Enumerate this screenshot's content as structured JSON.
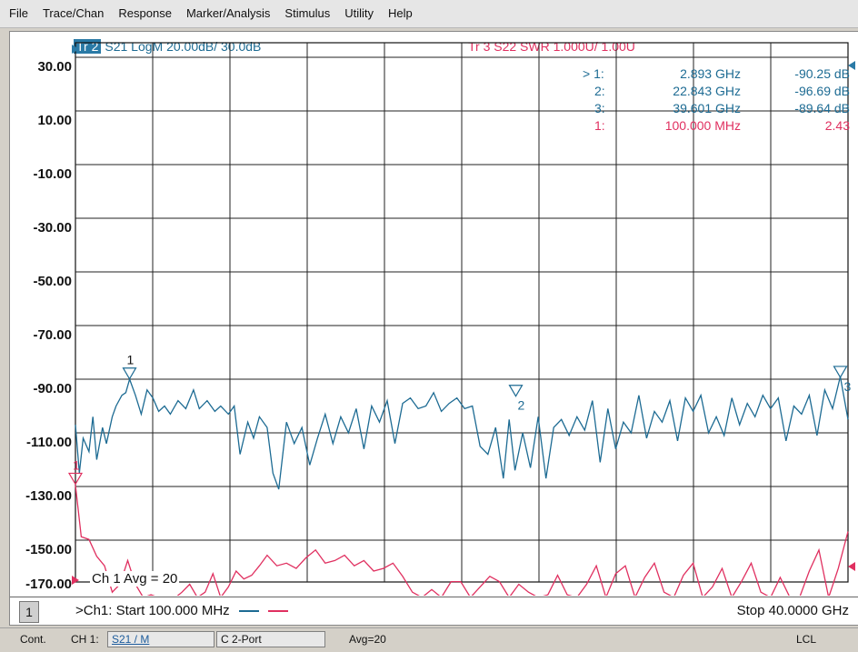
{
  "menu": [
    "File",
    "Trace/Chan",
    "Response",
    "Marker/Analysis",
    "Stimulus",
    "Utility",
    "Help"
  ],
  "trace2": {
    "id": "Tr 2",
    "label": "S21 LogM 20.00dB/ 30.0dB",
    "color": "#1d6b93"
  },
  "trace3": {
    "label": "Tr 3  S22 SWR 1.000U/ 1.00U",
    "color": "#e03060"
  },
  "y_axis": {
    "labels": [
      "30.00",
      "10.00",
      "-10.00",
      "-30.00",
      "-50.00",
      "-70.00",
      "-90.00",
      "-110.00",
      "-130.00",
      "-150.00",
      "-170.00"
    ],
    "ylim": [
      -170,
      30
    ],
    "divisions": 10
  },
  "marker_table": [
    {
      "num": "> 1:",
      "freq": "2.893 GHz",
      "value": "-90.25 dB",
      "color": "#1d6b93"
    },
    {
      "num": "2:",
      "freq": "22.843 GHz",
      "value": "-96.69 dB",
      "color": "#1d6b93"
    },
    {
      "num": "3:",
      "freq": "39.601 GHz",
      "value": "-89.64 dB",
      "color": "#1d6b93"
    },
    {
      "num": "1:",
      "freq": "100.000 MHz",
      "value": "2.43",
      "color": "#e03060"
    }
  ],
  "avg_label": "Ch 1 Avg =   20",
  "channel": {
    "number": "1",
    "start": ">Ch1: Start  100.000 MHz",
    "stop": "Stop  40.0000 GHz"
  },
  "status": {
    "mode": "Cont.",
    "ch": "CH 1:",
    "meas": "S21 / M",
    "port": "C 2-Port",
    "avg": "Avg=20",
    "lcl": "LCL"
  },
  "chart_data": {
    "type": "line",
    "x_range_ghz": [
      0.1,
      40.0
    ],
    "grid": true,
    "series": [
      {
        "trace": "Tr 2",
        "scale": "LogM 20.00 dB/div, ref 30.0 dB",
        "color": "#1d6b93",
        "x": [
          0.1,
          0.3,
          0.5,
          0.8,
          1.0,
          1.2,
          1.5,
          1.7,
          2.0,
          2.2,
          2.5,
          2.7,
          2.9,
          3.2,
          3.5,
          3.8,
          4.1,
          4.4,
          4.7,
          5.0,
          5.4,
          5.8,
          6.2,
          6.5,
          6.9,
          7.3,
          7.6,
          8.0,
          8.3,
          8.6,
          9.0,
          9.3,
          9.6,
          10.0,
          10.3,
          10.6,
          11.0,
          11.4,
          11.8,
          12.2,
          12.6,
          13.0,
          13.4,
          13.8,
          14.2,
          14.6,
          15.0,
          15.4,
          15.8,
          16.2,
          16.6,
          17.0,
          17.4,
          17.8,
          18.2,
          18.6,
          19.0,
          19.4,
          19.8,
          20.2,
          20.6,
          21.0,
          21.4,
          21.8,
          22.2,
          22.5,
          22.8,
          23.2,
          23.6,
          24.0,
          24.4,
          24.8,
          25.2,
          25.6,
          26.0,
          26.4,
          26.8,
          27.2,
          27.6,
          28.0,
          28.4,
          28.8,
          29.2,
          29.6,
          30.0,
          30.4,
          30.8,
          31.2,
          31.6,
          32.0,
          32.4,
          32.8,
          33.2,
          33.6,
          34.0,
          34.4,
          34.8,
          35.2,
          35.6,
          36.0,
          36.4,
          36.8,
          37.2,
          37.6,
          38.0,
          38.4,
          38.8,
          39.2,
          39.6,
          40.0
        ],
        "y": [
          -107,
          -125,
          -112,
          -117,
          -104,
          -120,
          -108,
          -114,
          -104,
          -100,
          -96,
          -95,
          -90,
          -96,
          -103,
          -94,
          -97,
          -102,
          -100,
          -103,
          -98,
          -101,
          -94,
          -101,
          -98,
          -102,
          -100,
          -103,
          -100,
          -118,
          -106,
          -112,
          -104,
          -108,
          -125,
          -131,
          -106,
          -114,
          -108,
          -122,
          -112,
          -103,
          -114,
          -104,
          -110,
          -101,
          -116,
          -100,
          -106,
          -98,
          -114,
          -99,
          -97,
          -101,
          -100,
          -95,
          -102,
          -99,
          -97,
          -101,
          -100,
          -115,
          -118,
          -108,
          -127,
          -105,
          -124,
          -110,
          -123,
          -104,
          -127,
          -108,
          -105,
          -111,
          -104,
          -109,
          -98,
          -121,
          -101,
          -116,
          -106,
          -110,
          -96,
          -112,
          -102,
          -106,
          -98,
          -113,
          -97,
          -102,
          -96,
          -110,
          -104,
          -111,
          -97,
          -107,
          -99,
          -104,
          -96,
          -101,
          -97,
          -113,
          -100,
          -103,
          -96,
          -111,
          -94,
          -101,
          -89,
          -105
        ],
        "markers": [
          {
            "label": "1",
            "x_ghz": 2.893,
            "y_db": -90.25
          },
          {
            "label": "2",
            "x_ghz": 22.843,
            "y_db": -96.69
          },
          {
            "label": "3",
            "x_ghz": 39.601,
            "y_db": -89.64
          }
        ]
      },
      {
        "trace": "Tr 3",
        "scale": "SWR 1.000U/div, ref 1.00U",
        "color": "#e03060",
        "x": [
          0.1,
          0.4,
          0.8,
          1.2,
          1.6,
          2.0,
          2.4,
          2.8,
          3.2,
          3.6,
          4.0,
          4.4,
          4.8,
          5.2,
          5.6,
          6.0,
          6.4,
          6.8,
          7.2,
          7.6,
          8.0,
          8.4,
          8.8,
          9.2,
          9.6,
          10.0,
          10.5,
          11.0,
          11.5,
          12.0,
          12.5,
          13.0,
          13.5,
          14.0,
          14.5,
          15.0,
          15.5,
          16.0,
          16.5,
          17.0,
          17.5,
          18.0,
          18.5,
          19.0,
          19.5,
          20.0,
          20.5,
          21.0,
          21.5,
          22.0,
          22.5,
          23.0,
          23.5,
          24.0,
          24.5,
          25.0,
          25.5,
          26.0,
          26.5,
          27.0,
          27.5,
          28.0,
          28.5,
          29.0,
          29.5,
          30.0,
          30.5,
          31.0,
          31.5,
          32.0,
          32.5,
          33.0,
          33.5,
          34.0,
          34.5,
          35.0,
          35.5,
          36.0,
          36.5,
          37.0,
          37.5,
          38.0,
          38.5,
          39.0,
          39.5,
          40.0
        ],
        "y": [
          2.43,
          1.45,
          1.4,
          1.08,
          0.9,
          0.4,
          0.55,
          1.0,
          0.55,
          0.3,
          0.35,
          0.3,
          0.32,
          0.28,
          0.4,
          0.55,
          0.3,
          0.4,
          0.75,
          0.3,
          0.5,
          0.8,
          0.65,
          0.72,
          0.9,
          1.1,
          0.9,
          0.95,
          0.85,
          1.05,
          1.2,
          0.95,
          1.0,
          1.1,
          0.9,
          1.0,
          0.8,
          0.85,
          0.95,
          0.7,
          0.4,
          0.3,
          0.45,
          0.3,
          0.6,
          0.6,
          0.3,
          0.5,
          0.7,
          0.6,
          0.3,
          0.55,
          0.4,
          0.3,
          0.35,
          0.72,
          0.35,
          0.3,
          0.55,
          0.9,
          0.3,
          0.75,
          0.9,
          0.3,
          0.68,
          0.95,
          0.4,
          0.3,
          0.72,
          0.95,
          0.3,
          0.5,
          0.85,
          0.3,
          0.6,
          0.95,
          0.4,
          0.3,
          0.68,
          0.3,
          0.3,
          0.8,
          1.2,
          0.3,
          0.85,
          1.55
        ],
        "markers": [
          {
            "label": "1",
            "x_ghz": 0.1,
            "y_u": 2.43
          }
        ]
      }
    ]
  }
}
